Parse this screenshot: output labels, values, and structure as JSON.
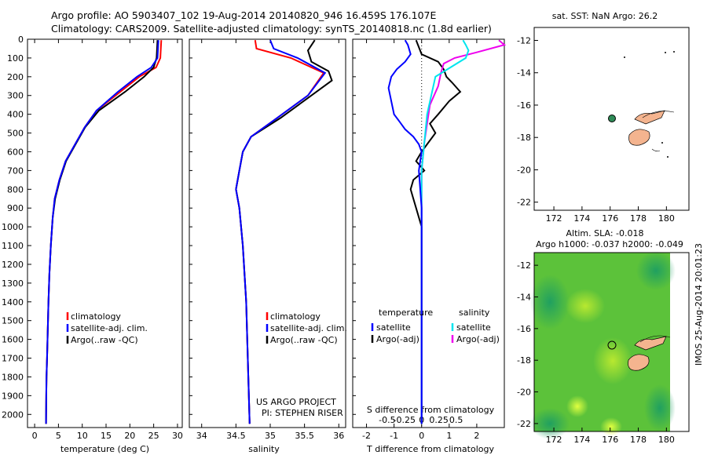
{
  "title_line1": "Argo profile: AO 5903407_102 19-Aug-2014 20140820_946 16.459S 176.107E",
  "title_line2": "Climatology: CARS2009. Satellite-adjusted climatology: synTS_20140818.nc (1.8d earlier)",
  "project_line1": "US ARGO PROJECT",
  "project_line2": "PI: STEPHEN RISER",
  "imos_stamp": "IMOS 25-Aug-2014 20:01:23",
  "colors": {
    "climatology": "#ff0000",
    "satellite": "#0000ff",
    "argo": "#000000",
    "sal_satellite": "#00e5ee",
    "sal_argo": "#ee00ee",
    "land": "#f4b48f",
    "float": "#2e8b57"
  },
  "map1": {
    "title": "sat. SST: NaN Argo: 26.2",
    "x_ticks": [
      "172",
      "174",
      "176",
      "178",
      "180"
    ],
    "y_ticks": [
      "-12",
      "-14",
      "-16",
      "-18",
      "-20",
      "-22"
    ]
  },
  "map2": {
    "title_line1": "Altim. SLA: -0.018",
    "title_line2": "Argo h1000: -0.037 h2000: -0.049",
    "x_ticks": [
      "172",
      "174",
      "176",
      "178",
      "180"
    ],
    "y_ticks": [
      "-12",
      "-14",
      "-16",
      "-18",
      "-20",
      "-22"
    ]
  },
  "chart_data": [
    {
      "type": "line",
      "id": "temperature",
      "xlabel": "temperature (deg C)",
      "ylabel": "",
      "xlim": [
        -1.5,
        31
      ],
      "ylim": [
        2070,
        0
      ],
      "x_ticks": [
        0,
        5,
        10,
        15,
        20,
        25,
        30
      ],
      "y_ticks": [
        0,
        100,
        200,
        300,
        400,
        500,
        600,
        700,
        800,
        900,
        1000,
        1100,
        1200,
        1300,
        1400,
        1500,
        1600,
        1700,
        1800,
        1900,
        2000
      ],
      "legend": [
        "climatology",
        "satellite-adj. clim.",
        "Argo(..raw -QC)"
      ],
      "series": [
        {
          "name": "climatology",
          "x": [
            26.6,
            26.4,
            25.5,
            22.0,
            18.0,
            13.0,
            10.5,
            8.5,
            6.5,
            5.2,
            4.2,
            3.8,
            3.4,
            3.1,
            2.9,
            2.8,
            2.7,
            2.6,
            2.5,
            2.45,
            2.4
          ],
          "y": [
            5,
            100,
            150,
            200,
            280,
            380,
            470,
            560,
            650,
            750,
            850,
            950,
            1100,
            1250,
            1400,
            1500,
            1600,
            1700,
            1800,
            1900,
            2050
          ]
        },
        {
          "name": "satellite-adj. clim.",
          "x": [
            26.0,
            25.8,
            24.5,
            21.5,
            17.5,
            13.0,
            10.5,
            8.5,
            6.5,
            5.2,
            4.2,
            3.8,
            3.4,
            3.1,
            2.9,
            2.8,
            2.7,
            2.6,
            2.5,
            2.45,
            2.4
          ],
          "y": [
            5,
            100,
            150,
            200,
            280,
            380,
            470,
            560,
            650,
            750,
            850,
            950,
            1100,
            1250,
            1400,
            1500,
            1600,
            1700,
            1800,
            1900,
            2050
          ]
        },
        {
          "name": "Argo(..raw -QC)",
          "x": [
            25.8,
            25.6,
            25.0,
            23.0,
            19.0,
            13.5,
            10.6,
            8.6,
            6.6,
            5.3,
            4.3,
            3.8,
            3.4,
            3.1,
            2.9,
            2.8,
            2.7,
            2.6,
            2.5,
            2.45,
            2.4
          ],
          "y": [
            5,
            100,
            150,
            200,
            280,
            380,
            470,
            560,
            650,
            750,
            850,
            950,
            1100,
            1250,
            1400,
            1500,
            1600,
            1700,
            1800,
            1900,
            2050
          ]
        }
      ]
    },
    {
      "type": "line",
      "id": "salinity",
      "xlabel": "salinity",
      "ylabel": "",
      "xlim": [
        33.82,
        36.1
      ],
      "ylim": [
        2070,
        0
      ],
      "x_ticks": [
        34,
        34.5,
        35,
        35.5,
        36
      ],
      "x_tick_labels": [
        "34",
        "34.5",
        "35",
        "35.5",
        "36"
      ],
      "legend": [
        "climatology",
        "satellite-adj. clim.",
        "Argo(..raw -QC)"
      ],
      "series": [
        {
          "name": "climatology",
          "x": [
            34.78,
            34.8,
            35.3,
            35.78,
            35.55,
            35.1,
            34.72,
            34.6,
            34.55,
            34.5,
            34.55,
            34.6,
            34.65,
            34.68,
            34.7
          ],
          "y": [
            5,
            50,
            100,
            180,
            300,
            420,
            520,
            600,
            700,
            800,
            900,
            1100,
            1400,
            1800,
            2050
          ]
        },
        {
          "name": "satellite-adj. clim.",
          "x": [
            35.0,
            35.05,
            35.4,
            35.8,
            35.55,
            35.1,
            34.72,
            34.6,
            34.55,
            34.5,
            34.55,
            34.6,
            34.65,
            34.68,
            34.7
          ],
          "y": [
            5,
            50,
            100,
            180,
            300,
            420,
            520,
            600,
            700,
            800,
            900,
            1100,
            1400,
            1800,
            2050
          ]
        },
        {
          "name": "Argo(..raw -QC)",
          "x": [
            35.65,
            35.55,
            35.6,
            35.85,
            35.9,
            35.6,
            35.15,
            34.72,
            34.6,
            34.55,
            34.5,
            34.55,
            34.6,
            34.65,
            34.68,
            34.7
          ],
          "y": [
            5,
            60,
            120,
            170,
            220,
            300,
            420,
            520,
            600,
            700,
            800,
            900,
            1100,
            1400,
            1800,
            2050
          ]
        }
      ]
    },
    {
      "type": "line",
      "id": "difference",
      "xlabel": "T difference from climatology",
      "x2label": "S difference from climatology",
      "xlim": [
        -2.5,
        3.0
      ],
      "ylim": [
        2070,
        0
      ],
      "x_ticks": [
        -2,
        -1,
        0,
        1,
        2
      ],
      "x2_ticks": [
        -0.5,
        -0.25,
        0,
        0.25,
        0.5
      ],
      "legend_temperature_title": "temperature",
      "legend_salinity_title": "salinity",
      "legend": [
        "satellite",
        "Argo(-adj)",
        "satellite",
        "Argo(-adj)"
      ],
      "series": [
        {
          "name": "satellite",
          "group": "temperature",
          "x": [
            -0.6,
            -0.5,
            -0.4,
            -0.6,
            -0.9,
            -1.1,
            -1.2,
            -1.1,
            -1.0,
            -0.8,
            -0.6,
            -0.3,
            -0.1,
            0.0,
            -0.1,
            0.0,
            0.0,
            0.0
          ],
          "y": [
            5,
            30,
            80,
            120,
            160,
            200,
            260,
            330,
            400,
            440,
            480,
            520,
            560,
            600,
            700,
            900,
            1400,
            2050
          ]
        },
        {
          "name": "Argo(-adj)",
          "group": "temperature",
          "x": [
            -0.2,
            0.0,
            0.6,
            0.8,
            0.9,
            1.1,
            1.4,
            1.0,
            0.6,
            0.3,
            0.5,
            0.2,
            0.0,
            -0.2,
            0.1,
            -0.3,
            -0.4,
            -0.3,
            -0.2,
            0.0,
            0.0
          ],
          "y": [
            5,
            80,
            120,
            160,
            200,
            230,
            280,
            330,
            400,
            450,
            500,
            560,
            600,
            650,
            700,
            750,
            800,
            850,
            900,
            1000,
            2050
          ]
        },
        {
          "name": "satellite",
          "group": "salinity",
          "x": [
            1.5,
            1.6,
            1.7,
            1.6,
            0.5,
            0.2,
            0.1,
            0.0,
            0.0,
            0.0,
            0.0
          ],
          "y": [
            5,
            30,
            60,
            100,
            200,
            400,
            550,
            700,
            1000,
            1500,
            2050
          ]
        },
        {
          "name": "Argo(-adj)",
          "group": "salinity",
          "x": [
            2.8,
            3.0,
            2.0,
            1.2,
            0.8,
            0.7,
            0.6,
            0.3,
            0.2,
            0.1,
            0.0,
            0.0,
            0.0
          ],
          "y": [
            5,
            30,
            70,
            100,
            130,
            180,
            250,
            350,
            450,
            550,
            700,
            1000,
            2050
          ]
        }
      ]
    }
  ]
}
